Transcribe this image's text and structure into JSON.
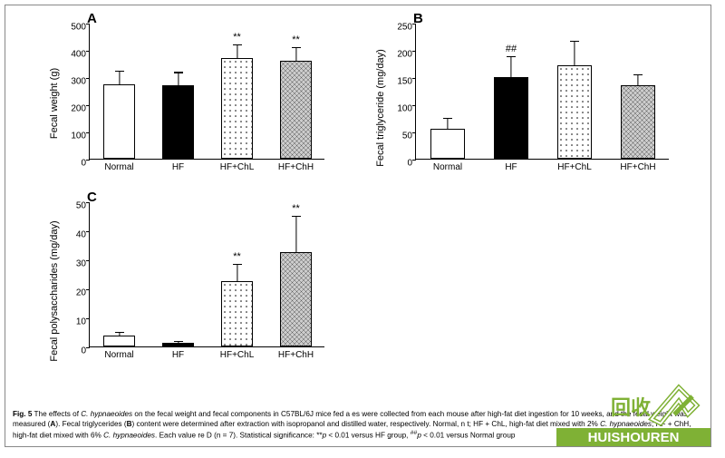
{
  "figure_border_color": "#888888",
  "background_color": "#ffffff",
  "axis_color": "#000000",
  "text_color": "#000000",
  "panel_label_fontsize": 15,
  "axis_label_fontsize": 11,
  "tick_fontsize": 10,
  "caption_fontsize": 8.2,
  "bar_border_width": 1.2,
  "error_bar_width": 1.2,
  "charts": {
    "A": {
      "panel_label": "A",
      "type": "bar",
      "ylabel": "Fecal weight (g)",
      "ylim": [
        0,
        500
      ],
      "ytick_step": 100,
      "categories": [
        "Normal",
        "HF",
        "HF+ChL",
        "HF+ChH"
      ],
      "values": [
        273,
        270,
        370,
        360
      ],
      "errors": [
        50,
        48,
        50,
        50
      ],
      "fills": [
        "open",
        "solid",
        "dots",
        "cross"
      ],
      "colors": [
        "#ffffff",
        "#000000",
        "#ffffff",
        "#cccccc"
      ],
      "sig": [
        "",
        "",
        "**",
        "**"
      ],
      "bar_width": 0.55
    },
    "B": {
      "panel_label": "B",
      "type": "bar",
      "ylabel": "Fecal triglyceride (mg/day)",
      "ylim": [
        0,
        250
      ],
      "ytick_step": 50,
      "categories": [
        "Normal",
        "HF",
        "HF+ChL",
        "HF+ChH"
      ],
      "values": [
        55,
        150,
        172,
        135
      ],
      "errors": [
        20,
        38,
        45,
        20
      ],
      "fills": [
        "open",
        "solid",
        "dots",
        "cross"
      ],
      "colors": [
        "#ffffff",
        "#000000",
        "#ffffff",
        "#cccccc"
      ],
      "sig": [
        "",
        "##",
        "",
        ""
      ],
      "bar_width": 0.55
    },
    "C": {
      "panel_label": "C",
      "type": "bar",
      "ylabel": "Fecal polysaccharides (mg/day)",
      "ylim": [
        0,
        50
      ],
      "ytick_step": 10,
      "categories": [
        "Normal",
        "HF",
        "HF+ChL",
        "HF+ChH"
      ],
      "values": [
        3.6,
        1.2,
        22.5,
        32.5
      ],
      "errors": [
        1.5,
        0.6,
        6,
        12.5
      ],
      "fills": [
        "open",
        "solid",
        "dots",
        "cross"
      ],
      "colors": [
        "#ffffff",
        "#000000",
        "#ffffff",
        "#cccccc"
      ],
      "sig": [
        "",
        "",
        "**",
        "**"
      ],
      "bar_width": 0.55
    }
  },
  "caption": {
    "lead": "Fig. 5",
    "body_1": "  The effects of ",
    "ital_1": "C. hypnaeoides",
    "body_2": " on the fecal weight and fecal components in C57BL/6J mice fed a                                        es were collected from each mouse after high-fat diet ingestion for 10 weeks, and the fecal weight was measured (",
    "bold_A": "A",
    "body_3": "). Fecal triglycerides (",
    "bold_B": "B",
    "body_4": ") content were determined after extraction with isopropanol and distilled water, respectively. Normal, n                                t; HF + ChL, high-fat diet mixed with 2% ",
    "ital_2": "C. hypnaeoides",
    "body_5": "; HF + ChH, high-fat diet mixed with 6% ",
    "ital_3": "C. hypnaeoides",
    "body_6": ". Each value re                        D (n = 7). Statistical significance: **",
    "ital_p1": "p",
    "body_7": " < 0.01 versus HF group, ",
    "sup_hh": "##",
    "ital_p2": "p",
    "body_8": " < 0.01 versus Normal group"
  },
  "watermark": {
    "bg": "#7fb135",
    "text": "HUISHOUREN",
    "text_color": "#ffffff",
    "arrow_color": "#ffffff"
  }
}
